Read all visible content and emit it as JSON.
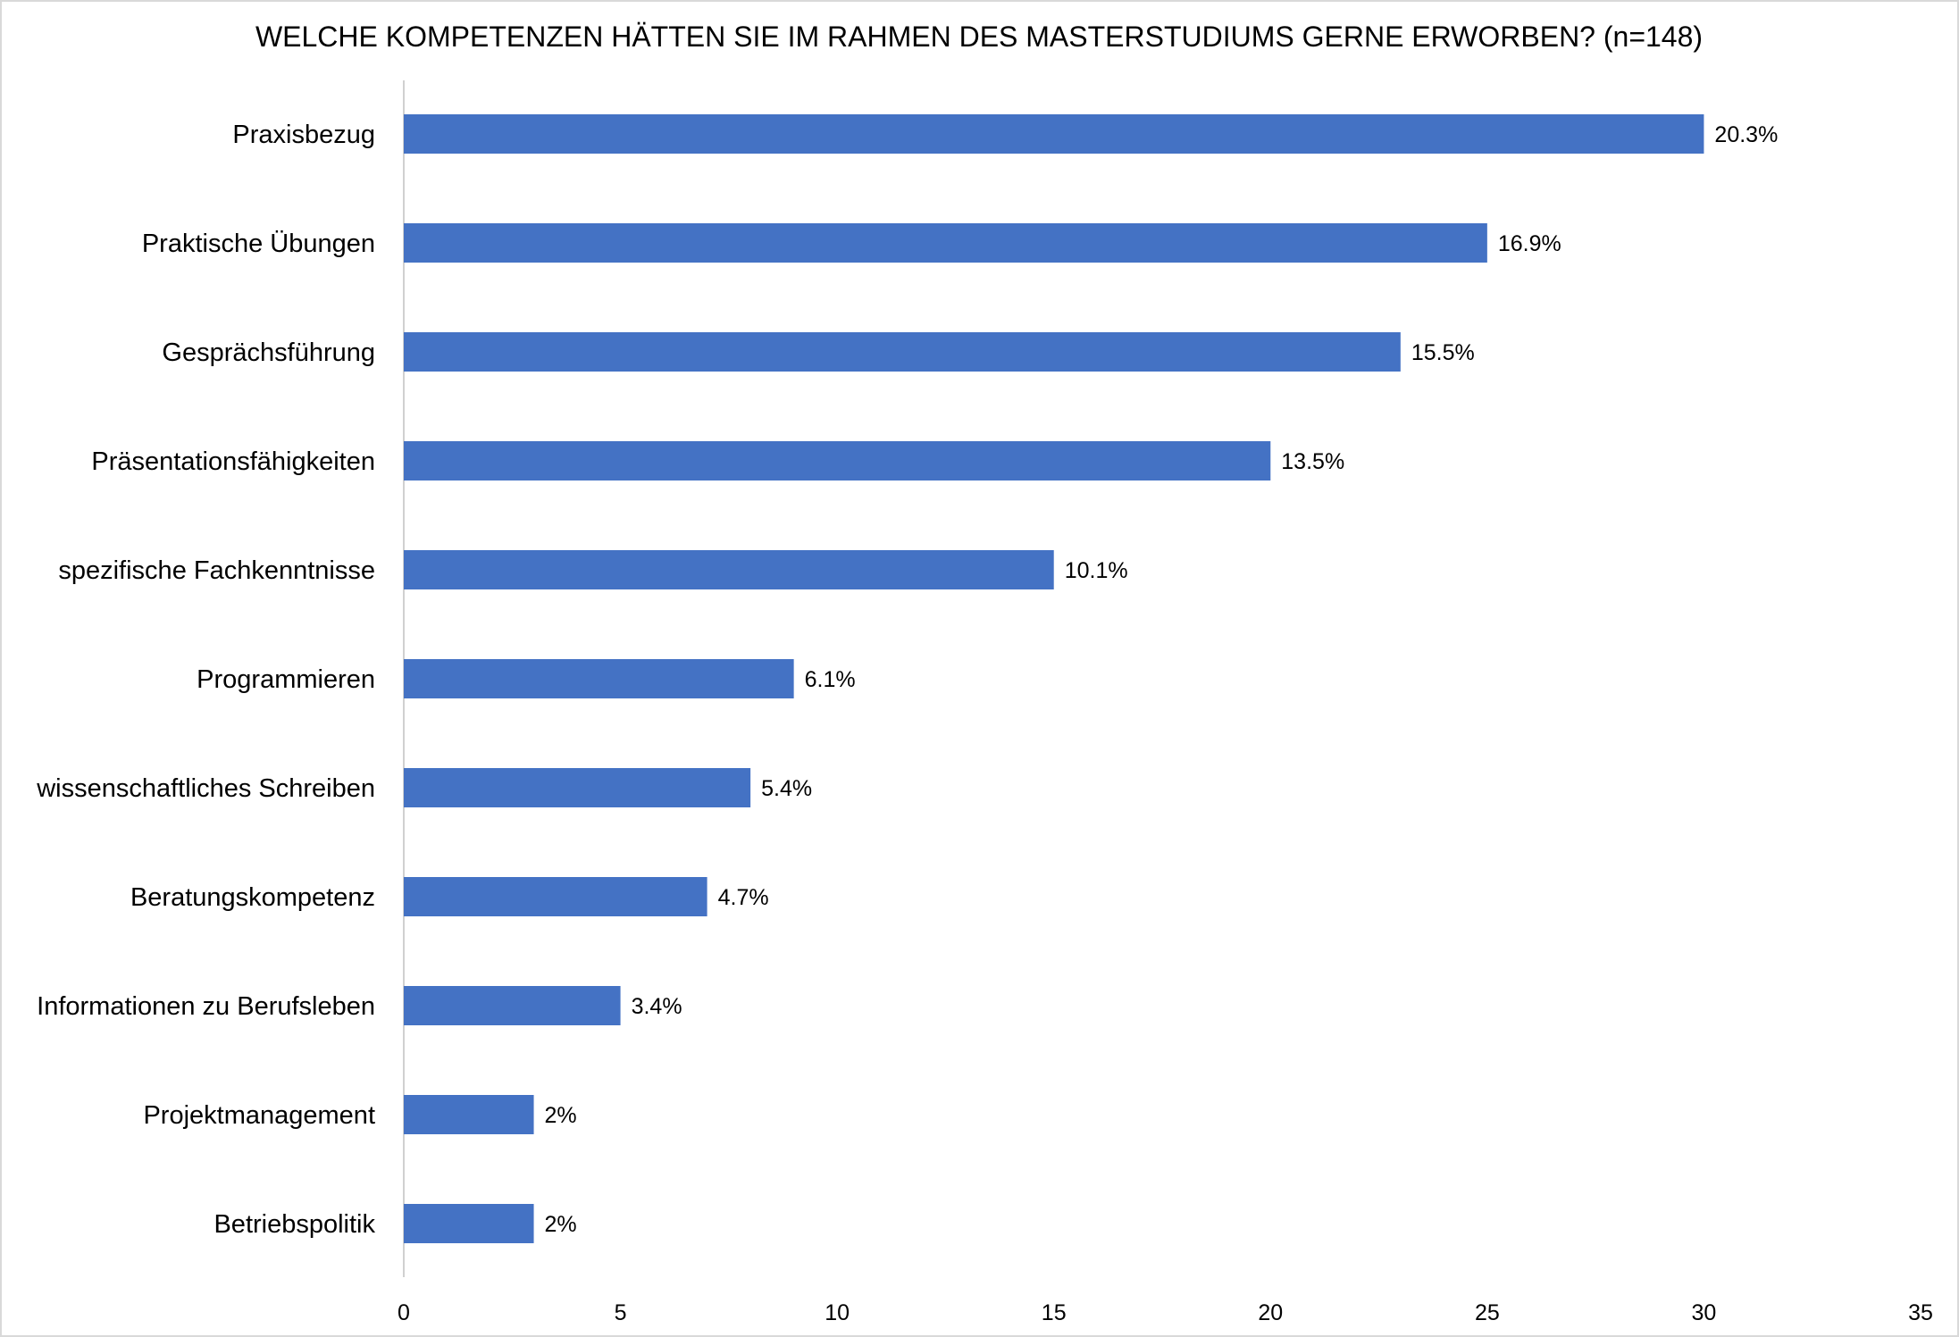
{
  "chart_data": {
    "type": "bar",
    "orientation": "horizontal",
    "title": "WELCHE KOMPETENZEN HÄTTEN SIE IM RAHMEN DES MASTERSTUDIUMS GERNE ERWORBEN? (n=148)",
    "categories": [
      "Praxisbezug",
      "Praktische Übungen",
      "Gesprächsführung",
      "Präsentationsfähigkeiten",
      "spezifische Fachkenntnisse",
      "Programmieren",
      "wissenschaftliches Schreiben",
      "Beratungskompetenz",
      "Informationen zu Berufsleben",
      "Projektmanagement",
      "Betriebspolitik"
    ],
    "values": [
      30,
      25,
      23,
      20,
      15,
      9,
      8,
      7,
      5,
      3,
      3
    ],
    "data_labels": [
      "20.3%",
      "16.9%",
      "15.5%",
      "13.5%",
      "10.1%",
      "6.1%",
      "5.4%",
      "4.7%",
      "3.4%",
      "2%",
      "2%"
    ],
    "xlabel": "",
    "ylabel": "",
    "xlim": [
      0,
      35
    ],
    "xticks": [
      "0",
      "5",
      "10",
      "15",
      "20",
      "25",
      "30",
      "35"
    ],
    "grid": false,
    "legend": "none",
    "bar_color": "#4472C4"
  }
}
